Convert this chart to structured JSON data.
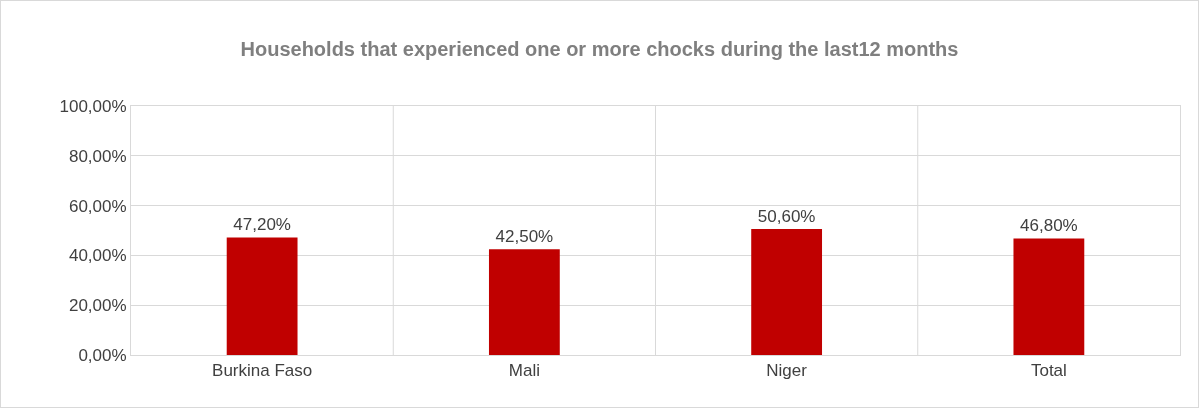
{
  "chart_data": {
    "type": "bar",
    "title": "Households that experienced one or more chocks during the last12 months",
    "categories": [
      "Burkina Faso",
      "Mali",
      "Niger",
      "Total"
    ],
    "values": [
      47.2,
      42.5,
      50.6,
      46.8
    ],
    "value_labels": [
      "47,20%",
      "42,50%",
      "50,60%",
      "46,80%"
    ],
    "color": "#c00000",
    "ylim": [
      0,
      100
    ],
    "yticks": [
      {
        "value": 0,
        "label": "0,00%"
      },
      {
        "value": 20,
        "label": "20,00%"
      },
      {
        "value": 40,
        "label": "40,00%"
      },
      {
        "value": 60,
        "label": "60,00%"
      },
      {
        "value": 80,
        "label": "80,00%"
      },
      {
        "value": 100,
        "label": "100,00%"
      }
    ],
    "grid": true,
    "legend": false
  }
}
